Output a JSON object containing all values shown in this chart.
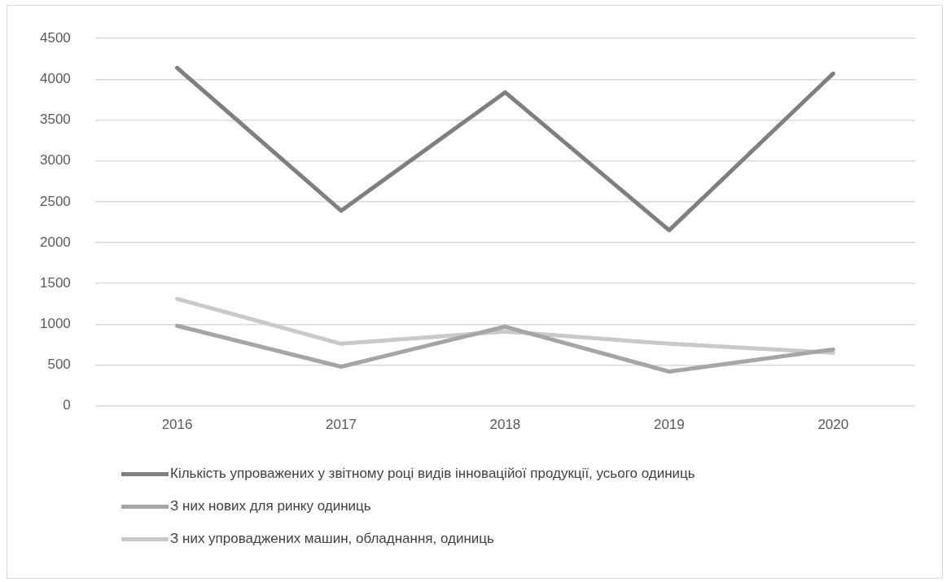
{
  "chart_data": {
    "type": "line",
    "categories": [
      "2016",
      "2017",
      "2018",
      "2019",
      "2020"
    ],
    "series": [
      {
        "name": "Кількість упроважених у звітному році видів інноваційої продукції, усього одиниць",
        "color": "#7f7f7f",
        "values": [
          4140,
          2390,
          3840,
          2150,
          4070
        ]
      },
      {
        "name": "З них нових для ринку одиниць",
        "color": "#a5a5a5",
        "values": [
          980,
          480,
          970,
          420,
          690
        ]
      },
      {
        "name": "З них упроваджених машин, обладнання, одиниць",
        "color": "#c9c9c9",
        "values": [
          1310,
          760,
          910,
          760,
          650
        ]
      }
    ],
    "ylim": [
      0,
      4500
    ],
    "yticks": [
      0,
      500,
      1000,
      1500,
      2000,
      2500,
      3000,
      3500,
      4000,
      4500
    ],
    "grid": "y",
    "legend": "bottom",
    "marker": "none",
    "line_style": "solid"
  }
}
